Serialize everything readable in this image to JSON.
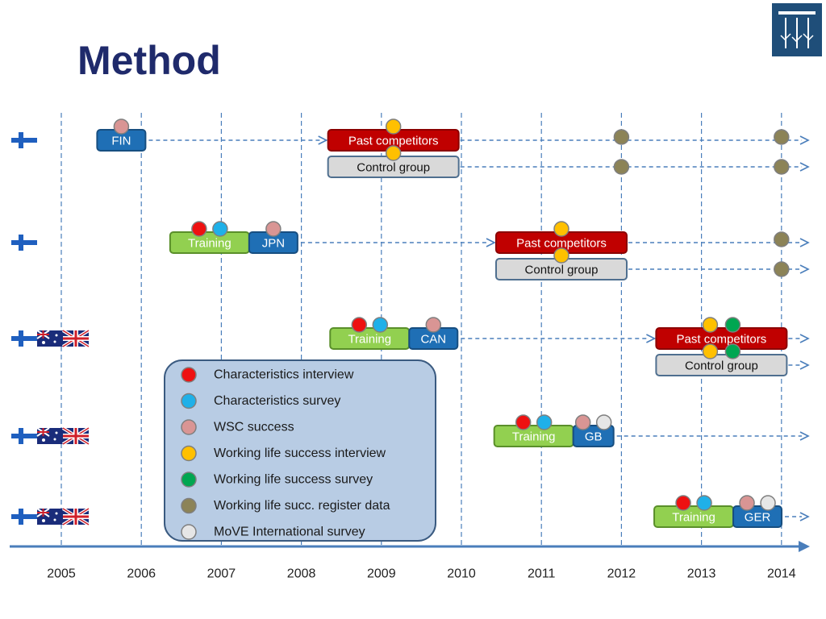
{
  "title": "Method",
  "colors": {
    "title": "#1f2a6b",
    "axis": "#4a7ebb",
    "blue_box": "#1f6fb5",
    "green_box": "#92d050",
    "red_box": "#c00000",
    "grey_box": "#d9d9d9",
    "legend_bg": "#b8cce4",
    "red_dot": "#ee1111",
    "blue_dot": "#1fb0e8",
    "pink_dot": "#d99594",
    "yellow_dot": "#ffc000",
    "green_dot": "#00a651",
    "olive_dot": "#8c8357",
    "white_dot": "#e6e6e6"
  },
  "axis_years": [
    "2005",
    "2006",
    "2007",
    "2008",
    "2009",
    "2010",
    "2011",
    "2012",
    "2013",
    "2014"
  ],
  "legend": [
    {
      "label": "Characteristics interview",
      "dot": "red_dot"
    },
    {
      "label": "Characteristics survey",
      "dot": "blue_dot"
    },
    {
      "label": "WSC success",
      "dot": "pink_dot"
    },
    {
      "label": "Working life success interview",
      "dot": "yellow_dot"
    },
    {
      "label": "Working life success survey",
      "dot": "green_dot"
    },
    {
      "label": "Working life succ. register data",
      "dot": "olive_dot"
    },
    {
      "label": "MoVE International survey",
      "dot": "white_dot"
    }
  ],
  "rows": [
    {
      "flags": [
        "finland-flag"
      ],
      "competition": {
        "label": "FIN",
        "year": 2005.75,
        "dots": [
          "pink_dot"
        ]
      },
      "past": {
        "label": "Past competitors",
        "year": 2009.15,
        "dots": [
          "yellow_dot"
        ]
      },
      "control": {
        "label": "Control group",
        "year": 2009.15,
        "dots": [
          "yellow_dot"
        ]
      },
      "register": [
        2012.0,
        2014.0
      ],
      "control_register": [
        2012.0,
        2014.0
      ]
    },
    {
      "flags": [
        "finland-flag"
      ],
      "training": {
        "label": "Training",
        "dots": [
          "red_dot",
          "blue_dot"
        ]
      },
      "competition": {
        "label": "JPN",
        "year": 2007.65,
        "dots": [
          "pink_dot"
        ]
      },
      "past": {
        "label": "Past competitors",
        "year": 2011.25,
        "dots": [
          "yellow_dot"
        ]
      },
      "control": {
        "label": "Control group",
        "year": 2011.25,
        "dots": [
          "yellow_dot"
        ]
      },
      "register": [
        2014.0
      ],
      "control_register": [
        2014.0
      ]
    },
    {
      "flags": [
        "finland-flag",
        "australia-flag",
        "uk-flag"
      ],
      "training": {
        "label": "Training",
        "dots": [
          "red_dot",
          "blue_dot"
        ]
      },
      "competition": {
        "label": "CAN",
        "year": 2009.65,
        "dots": [
          "pink_dot"
        ]
      },
      "past": {
        "label": "Past competitors",
        "year": 2013.25,
        "dots": [
          "yellow_dot",
          "green_dot"
        ]
      },
      "control": {
        "label": "Control group",
        "year": 2013.25,
        "dots": [
          "yellow_dot",
          "green_dot"
        ]
      },
      "register": [],
      "control_register": []
    },
    {
      "flags": [
        "finland-flag",
        "australia-flag",
        "uk-flag"
      ],
      "training": {
        "label": "Training",
        "dots": [
          "red_dot",
          "blue_dot"
        ]
      },
      "competition": {
        "label": "GB",
        "year": 2011.65,
        "dots": [
          "pink_dot",
          "white_dot"
        ]
      },
      "register": []
    },
    {
      "flags": [
        "finland-flag",
        "australia-flag",
        "uk-flag"
      ],
      "training": {
        "label": "Training",
        "dots": [
          "red_dot",
          "blue_dot"
        ]
      },
      "competition": {
        "label": "GER",
        "year": 2013.7,
        "dots": [
          "pink_dot",
          "white_dot"
        ]
      },
      "register": []
    }
  ]
}
